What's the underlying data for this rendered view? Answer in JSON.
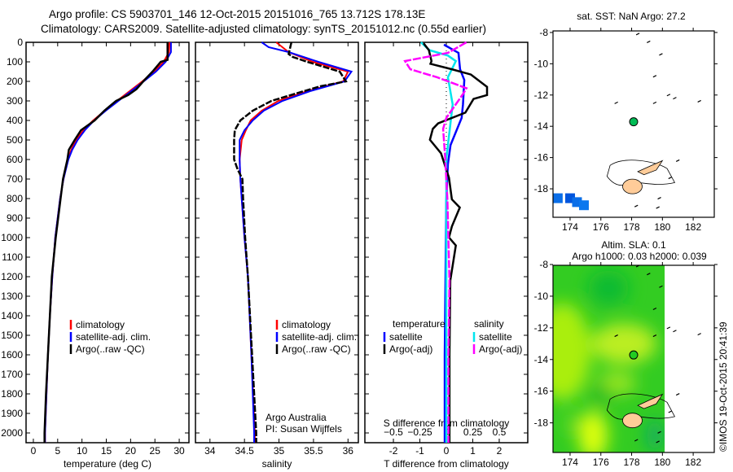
{
  "title": {
    "line1": "Argo profile: CS 5903701_146 12-Oct-2015 20151016_765 13.712S 178.13E",
    "line2": "Climatology: CARS2009. Satellite-adjusted climatology: synTS_20151012.nc (0.55d earlier)"
  },
  "credit": "©IMOS 19-Oct-2015 20:41:39",
  "colors": {
    "climatology": "#ff0000",
    "satellite": "#0000ff",
    "argo": "#000000",
    "sal_satellite": "#00e5ee",
    "sal_argo": "#ff00ff",
    "land": "#ffcc99",
    "float": "#00bb55"
  },
  "chart_data": [
    {
      "id": "temperature",
      "type": "line",
      "xlabel": "temperature (deg C)",
      "ylim": [
        0,
        2050
      ],
      "xlim": [
        -1.5,
        32
      ],
      "xticks": [
        0,
        5,
        10,
        15,
        20,
        25,
        30
      ],
      "yticks": [
        0,
        100,
        200,
        300,
        400,
        500,
        600,
        700,
        800,
        900,
        1000,
        1100,
        1200,
        1300,
        1400,
        1500,
        1600,
        1700,
        1800,
        1900,
        2000
      ],
      "legend": [
        "climatology",
        "satellite-adj. clim.",
        "Argo(..raw -QC)"
      ],
      "series": [
        {
          "name": "climatology",
          "color": "#ff0000",
          "points": [
            [
              0,
              28
            ],
            [
              50,
              27.9
            ],
            [
              100,
              26.8
            ],
            [
              150,
              24.8
            ],
            [
              200,
              22.4
            ],
            [
              250,
              19.8
            ],
            [
              300,
              17.2
            ],
            [
              350,
              14.7
            ],
            [
              400,
              12.3
            ],
            [
              450,
              10.3
            ],
            [
              500,
              8.8
            ],
            [
              550,
              7.8
            ],
            [
              600,
              7.1
            ],
            [
              700,
              6.2
            ],
            [
              800,
              5.5
            ],
            [
              900,
              5
            ],
            [
              1000,
              4.5
            ],
            [
              1200,
              3.9
            ],
            [
              1400,
              3.4
            ],
            [
              1600,
              3
            ],
            [
              1800,
              2.7
            ],
            [
              2000,
              2.4
            ],
            [
              2050,
              2.4
            ]
          ]
        },
        {
          "name": "satellite-adj. clim.",
          "color": "#0000ff",
          "points": [
            [
              0,
              28.3
            ],
            [
              50,
              28.3
            ],
            [
              100,
              27.2
            ],
            [
              150,
              25.2
            ],
            [
              200,
              22.7
            ],
            [
              250,
              20.1
            ],
            [
              300,
              17.5
            ],
            [
              350,
              14.9
            ],
            [
              400,
              12.5
            ],
            [
              450,
              10.6
            ],
            [
              500,
              9.1
            ],
            [
              550,
              8
            ],
            [
              600,
              7.2
            ],
            [
              700,
              6.2
            ],
            [
              800,
              5.5
            ],
            [
              900,
              5
            ],
            [
              1000,
              4.5
            ],
            [
              1200,
              3.9
            ],
            [
              1400,
              3.4
            ],
            [
              1600,
              3
            ],
            [
              1800,
              2.7
            ],
            [
              2000,
              2.4
            ],
            [
              2050,
              2.4
            ]
          ]
        },
        {
          "name": "Argo(..raw -QC)",
          "color": "#000000",
          "points": [
            [
              0,
              27.6
            ],
            [
              90,
              27.6
            ],
            [
              100,
              26.2
            ],
            [
              150,
              24.5
            ],
            [
              200,
              22.6
            ],
            [
              240,
              21.2
            ],
            [
              270,
              19.5
            ],
            [
              300,
              17
            ],
            [
              350,
              14.6
            ],
            [
              400,
              12.6
            ],
            [
              450,
              9.8
            ],
            [
              500,
              8.5
            ],
            [
              550,
              7.3
            ],
            [
              600,
              7
            ],
            [
              700,
              6.1
            ],
            [
              800,
              5.6
            ],
            [
              900,
              5.1
            ],
            [
              1000,
              4.6
            ],
            [
              1200,
              3.8
            ],
            [
              1400,
              3.4
            ],
            [
              1600,
              3
            ],
            [
              1800,
              2.6
            ],
            [
              2000,
              2.3
            ],
            [
              2050,
              2.3
            ]
          ]
        }
      ]
    },
    {
      "id": "salinity",
      "type": "line",
      "xlabel": "salinity",
      "ylim": [
        0,
        2050
      ],
      "xlim": [
        33.79,
        36.15
      ],
      "xticks": [
        34,
        34.5,
        35,
        35.5,
        36
      ],
      "xticklabels": [
        "34",
        "34.5",
        "35",
        "35.5",
        "36"
      ],
      "legend": [
        "climatology",
        "satellite-adj. clim.",
        "Argo(..raw -QC)"
      ],
      "annotation": [
        "Argo Australia",
        "PI: Susan Wijffels"
      ],
      "series": [
        {
          "name": "climatology",
          "color": "#ff0000",
          "points": [
            [
              0,
              34.96
            ],
            [
              50,
              35.14
            ],
            [
              100,
              35.49
            ],
            [
              150,
              36.0
            ],
            [
              200,
              35.93
            ],
            [
              250,
              35.41
            ],
            [
              300,
              34.99
            ],
            [
              350,
              34.75
            ],
            [
              400,
              34.59
            ],
            [
              450,
              34.52
            ],
            [
              500,
              34.46
            ],
            [
              600,
              34.43
            ],
            [
              700,
              34.44
            ],
            [
              800,
              34.46
            ],
            [
              1000,
              34.5
            ],
            [
              1200,
              34.55
            ],
            [
              1600,
              34.6
            ],
            [
              2000,
              34.65
            ],
            [
              2050,
              34.65
            ]
          ]
        },
        {
          "name": "satellite-adj. clim.",
          "color": "#0000ff",
          "points": [
            [
              0,
              34.75
            ],
            [
              25,
              34.85
            ],
            [
              50,
              35.14
            ],
            [
              100,
              35.57
            ],
            [
              150,
              36.05
            ],
            [
              200,
              35.95
            ],
            [
              250,
              35.45
            ],
            [
              300,
              35.05
            ],
            [
              350,
              34.78
            ],
            [
              400,
              34.62
            ],
            [
              450,
              34.5
            ],
            [
              500,
              34.43
            ],
            [
              600,
              34.43
            ],
            [
              700,
              34.44
            ],
            [
              800,
              34.46
            ],
            [
              1000,
              34.5
            ],
            [
              1200,
              34.55
            ],
            [
              1600,
              34.6
            ],
            [
              2000,
              34.64
            ],
            [
              2050,
              34.64
            ]
          ]
        },
        {
          "name": "Argo(..raw -QC)",
          "color": "#000000",
          "points": [
            [
              0,
              35.18
            ],
            [
              60,
              35.14
            ],
            [
              75,
              35.2
            ],
            [
              100,
              35.41
            ],
            [
              150,
              35.88
            ],
            [
              200,
              35.97
            ],
            [
              225,
              35.6
            ],
            [
              250,
              35.36
            ],
            [
              300,
              34.89
            ],
            [
              350,
              34.62
            ],
            [
              400,
              34.44
            ],
            [
              450,
              34.36
            ],
            [
              500,
              34.35
            ],
            [
              600,
              34.35
            ],
            [
              650,
              34.4
            ],
            [
              700,
              34.47
            ],
            [
              800,
              34.48
            ],
            [
              1000,
              34.51
            ],
            [
              1200,
              34.55
            ],
            [
              1600,
              34.61
            ],
            [
              2000,
              34.67
            ],
            [
              2050,
              34.67
            ]
          ]
        }
      ]
    },
    {
      "id": "difference",
      "type": "line",
      "xlabel": "T difference from climatology",
      "x2label": "S difference from climatology",
      "ylim": [
        0,
        2050
      ],
      "xlim": [
        -3.08,
        3.08
      ],
      "xticks": [
        -2,
        -1,
        0,
        1,
        2
      ],
      "x2ticks": [
        -0.5,
        -0.25,
        0,
        0.25,
        0.5
      ],
      "legend_temperature": {
        "title": "temperature",
        "items": [
          "satellite",
          "Argo(-adj)"
        ]
      },
      "legend_salinity": {
        "title": "salinity",
        "items": [
          "satellite",
          "Argo(-adj)"
        ]
      },
      "series": [
        {
          "name": "temperature satellite",
          "axis": "T",
          "color": "#0000ff",
          "points": [
            [
              12,
              -0.09
            ],
            [
              54,
              0.46
            ],
            [
              138,
              0.52
            ],
            [
              193,
              0.68
            ],
            [
              318,
              0.63
            ],
            [
              387,
              0.58
            ],
            [
              526,
              0.16
            ],
            [
              624,
              0.06
            ],
            [
              804,
              0
            ],
            [
              1200,
              -0.03
            ],
            [
              1600,
              -0.06
            ],
            [
              2050,
              -0.06
            ]
          ]
        },
        {
          "name": "salinity satellite",
          "axis": "S",
          "color": "#00e5ee",
          "points": [
            [
              0,
              -0.24
            ],
            [
              40,
              -0.16
            ],
            [
              68,
              0.015
            ],
            [
              96,
              0.09
            ],
            [
              179,
              0.015
            ],
            [
              318,
              0.06
            ],
            [
              457,
              0.03
            ],
            [
              596,
              0
            ],
            [
              1000,
              0
            ],
            [
              1600,
              0
            ],
            [
              2050,
              0
            ]
          ]
        },
        {
          "name": "temperature Argo(-adj)",
          "axis": "T",
          "color": "#000000",
          "points": [
            [
              5,
              -0.86
            ],
            [
              40,
              -0.66
            ],
            [
              96,
              -0.56
            ],
            [
              110,
              -0.6
            ],
            [
              138,
              0.21
            ],
            [
              165,
              0.93
            ],
            [
              228,
              1.54
            ],
            [
              270,
              1.54
            ],
            [
              290,
              1.03
            ],
            [
              360,
              0.72
            ],
            [
              415,
              -0.31
            ],
            [
              443,
              -0.51
            ],
            [
              499,
              -0.62
            ],
            [
              568,
              -0.2
            ],
            [
              693,
              0.1
            ],
            [
              804,
              0.21
            ],
            [
              846,
              0.51
            ],
            [
              943,
              0.21
            ],
            [
              999,
              0.1
            ],
            [
              1040,
              0.36
            ],
            [
              1220,
              0.15
            ],
            [
              1600,
              0.12
            ],
            [
              2050,
              0.12
            ]
          ]
        },
        {
          "name": "salinity Argo(-adj)",
          "axis": "S",
          "color": "#ff00ff",
          "points": [
            [
              0,
              0.19
            ],
            [
              54,
              0.015
            ],
            [
              96,
              -0.39
            ],
            [
              138,
              -0.34
            ],
            [
              179,
              -0.087
            ],
            [
              235,
              0.19
            ],
            [
              263,
              0.16
            ],
            [
              387,
              0
            ],
            [
              443,
              -0.03
            ],
            [
              596,
              -0.01
            ],
            [
              804,
              0.01
            ],
            [
              1220,
              0.03
            ],
            [
              1600,
              0.02
            ],
            [
              2050,
              0.02
            ]
          ]
        }
      ]
    },
    {
      "id": "map_sst",
      "type": "heatmap",
      "title": "sat. SST: NaN Argo: 27.2",
      "xlim": [
        172.89,
        183.37
      ],
      "ylim": [
        -19.82,
        -7.9
      ],
      "xticks": [
        174,
        176,
        178,
        180,
        182
      ],
      "yticks": [
        -8,
        -10,
        -12,
        -14,
        -16,
        -18
      ],
      "float": {
        "lon": 178.13,
        "lat": -13.712
      },
      "cells": [
        {
          "lon": 173.2,
          "lat": -18.6,
          "color": "#0a6ee8"
        },
        {
          "lon": 174,
          "lat": -18.6,
          "color": "#0055dd"
        },
        {
          "lon": 174.45,
          "lat": -18.85,
          "color": "#0a6ee8"
        },
        {
          "lon": 174.9,
          "lat": -19.05,
          "color": "#0a77ee"
        }
      ]
    },
    {
      "id": "map_sla",
      "type": "heatmap",
      "title": "Altim. SLA: 0.1",
      "subtitle": "Argo h1000: 0.03 h2000: 0.039",
      "xlim": [
        172.89,
        183.37
      ],
      "ylim": [
        -19.87,
        -8.05
      ],
      "xticks": [
        174,
        176,
        178,
        180,
        182
      ],
      "yticks": [
        -8,
        -10,
        -12,
        -14,
        -16,
        -18
      ],
      "float": {
        "lon": 178.13,
        "lat": -13.712
      },
      "data_lon_max": 180.15
    }
  ]
}
